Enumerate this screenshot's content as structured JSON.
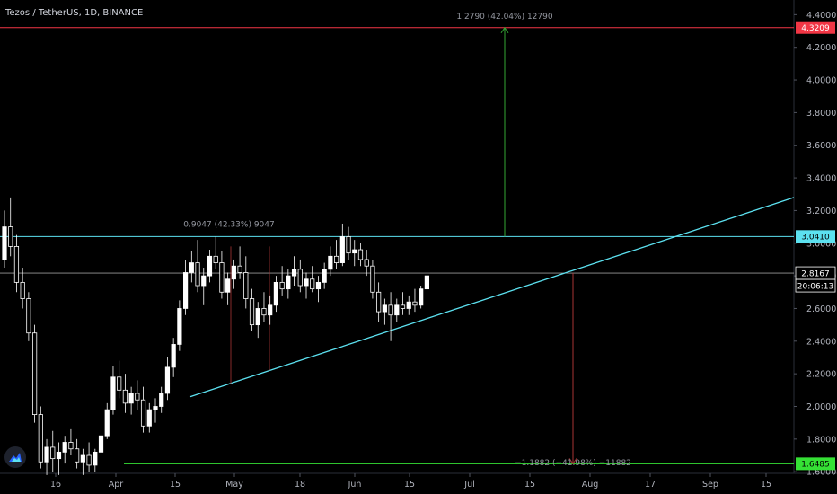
{
  "chart_data": {
    "type": "candlestick",
    "title": "Tezos / TetherUS, 1D, BINANCE",
    "price_axis": {
      "range": [
        1.59,
        4.49
      ],
      "ticks": [
        "4.4000",
        "4.2000",
        "4.0000",
        "3.8000",
        "3.6000",
        "3.4000",
        "3.2000",
        "3.0000",
        "2.8000",
        "2.6000",
        "2.4000",
        "2.2000",
        "2.0000",
        "1.8000",
        "1.6000"
      ]
    },
    "time_axis": {
      "ticks": [
        "16",
        "Apr",
        "15",
        "May",
        "18",
        "Jun",
        "15",
        "Jul",
        "15",
        "Aug",
        "17",
        "Sep",
        "15"
      ]
    },
    "horizontal_levels": [
      {
        "price": 4.3209,
        "label": "4.3209",
        "color": "#f23645"
      },
      {
        "price": 3.041,
        "label": "3.0410",
        "color": "#5ce1f0"
      },
      {
        "price": 2.8167,
        "label": "2.8167",
        "color": "#ffffff"
      },
      {
        "price": 1.6485,
        "label": "1.6485",
        "color": "#35e035"
      }
    ],
    "countdown": "20:06:13",
    "measurements": [
      {
        "text": "0.9047 (42.33%) 9047"
      },
      {
        "text": "1.2790 (42.04%) 12790"
      },
      {
        "text": "−1.1882 (−41.98%) −11882"
      }
    ],
    "trendlines": [
      {
        "name": "ascending-support",
        "color": "#5ce1f0",
        "from": [
          20,
          2.06
        ],
        "to": [
          125,
          3.28
        ]
      }
    ],
    "candles_ohlc": [
      [
        0,
        2.9,
        3.2,
        2.85,
        3.1
      ],
      [
        1,
        3.1,
        3.28,
        2.92,
        2.98
      ],
      [
        2,
        2.98,
        3.05,
        2.7,
        2.76
      ],
      [
        3,
        2.76,
        2.85,
        2.6,
        2.66
      ],
      [
        4,
        2.66,
        2.7,
        2.4,
        2.45
      ],
      [
        5,
        2.45,
        2.5,
        1.9,
        1.95
      ],
      [
        6,
        1.95,
        2.0,
        1.62,
        1.66
      ],
      [
        7,
        1.66,
        1.8,
        1.58,
        1.75
      ],
      [
        8,
        1.75,
        1.85,
        1.6,
        1.68
      ],
      [
        9,
        1.68,
        1.78,
        1.58,
        1.72
      ],
      [
        10,
        1.72,
        1.82,
        1.65,
        1.78
      ],
      [
        11,
        1.78,
        1.86,
        1.7,
        1.74
      ],
      [
        12,
        1.74,
        1.8,
        1.62,
        1.66
      ],
      [
        13,
        1.66,
        1.74,
        1.58,
        1.7
      ],
      [
        14,
        1.7,
        1.78,
        1.6,
        1.64
      ],
      [
        15,
        1.64,
        1.74,
        1.6,
        1.72
      ],
      [
        16,
        1.72,
        1.86,
        1.68,
        1.82
      ],
      [
        17,
        1.82,
        2.02,
        1.8,
        1.98
      ],
      [
        18,
        1.98,
        2.25,
        1.95,
        2.18
      ],
      [
        19,
        2.18,
        2.28,
        2.05,
        2.1
      ],
      [
        20,
        2.1,
        2.2,
        1.96,
        2.02
      ],
      [
        21,
        2.02,
        2.12,
        1.95,
        2.08
      ],
      [
        22,
        2.08,
        2.16,
        1.98,
        2.04
      ],
      [
        23,
        2.04,
        2.12,
        1.84,
        1.88
      ],
      [
        24,
        1.88,
        2.02,
        1.84,
        1.98
      ],
      [
        25,
        1.98,
        2.05,
        1.9,
        2.0
      ],
      [
        26,
        2.0,
        2.12,
        1.96,
        2.08
      ],
      [
        27,
        2.08,
        2.3,
        2.04,
        2.24
      ],
      [
        28,
        2.24,
        2.42,
        2.18,
        2.38
      ],
      [
        29,
        2.38,
        2.65,
        2.34,
        2.6
      ],
      [
        30,
        2.6,
        2.9,
        2.56,
        2.82
      ],
      [
        31,
        2.82,
        2.95,
        2.76,
        2.88
      ],
      [
        32,
        2.88,
        3.02,
        2.7,
        2.74
      ],
      [
        33,
        2.74,
        2.85,
        2.62,
        2.8
      ],
      [
        34,
        2.8,
        2.96,
        2.76,
        2.92
      ],
      [
        35,
        2.92,
        3.04,
        2.84,
        2.88
      ],
      [
        36,
        2.88,
        2.95,
        2.66,
        2.7
      ],
      [
        37,
        2.7,
        2.82,
        2.62,
        2.78
      ],
      [
        38,
        2.78,
        2.9,
        2.72,
        2.86
      ],
      [
        39,
        2.86,
        2.98,
        2.78,
        2.82
      ],
      [
        40,
        2.82,
        2.92,
        2.6,
        2.66
      ],
      [
        41,
        2.66,
        2.72,
        2.46,
        2.5
      ],
      [
        42,
        2.5,
        2.64,
        2.42,
        2.6
      ],
      [
        43,
        2.6,
        2.7,
        2.52,
        2.56
      ],
      [
        44,
        2.56,
        2.68,
        2.5,
        2.62
      ],
      [
        45,
        2.62,
        2.8,
        2.58,
        2.76
      ],
      [
        46,
        2.76,
        2.86,
        2.68,
        2.72
      ],
      [
        47,
        2.72,
        2.84,
        2.66,
        2.8
      ],
      [
        48,
        2.8,
        2.92,
        2.74,
        2.84
      ],
      [
        49,
        2.84,
        2.9,
        2.7,
        2.74
      ],
      [
        50,
        2.74,
        2.82,
        2.66,
        2.78
      ],
      [
        51,
        2.78,
        2.86,
        2.7,
        2.72
      ],
      [
        52,
        2.72,
        2.8,
        2.64,
        2.76
      ],
      [
        53,
        2.76,
        2.88,
        2.72,
        2.84
      ],
      [
        54,
        2.84,
        2.98,
        2.8,
        2.92
      ],
      [
        55,
        2.92,
        3.02,
        2.84,
        2.88
      ],
      [
        56,
        2.88,
        3.12,
        2.86,
        3.04
      ],
      [
        57,
        3.04,
        3.1,
        2.9,
        2.94
      ],
      [
        58,
        2.94,
        3.02,
        2.86,
        2.96
      ],
      [
        59,
        2.96,
        3.0,
        2.86,
        2.9
      ],
      [
        60,
        2.9,
        2.96,
        2.8,
        2.86
      ],
      [
        61,
        2.86,
        2.9,
        2.66,
        2.7
      ],
      [
        62,
        2.7,
        2.76,
        2.52,
        2.58
      ],
      [
        63,
        2.58,
        2.66,
        2.5,
        2.62
      ],
      [
        64,
        2.62,
        2.7,
        2.4,
        2.56
      ],
      [
        65,
        2.56,
        2.66,
        2.52,
        2.62
      ],
      [
        66,
        2.62,
        2.7,
        2.56,
        2.6
      ],
      [
        67,
        2.6,
        2.68,
        2.56,
        2.64
      ],
      [
        68,
        2.64,
        2.72,
        2.58,
        2.62
      ],
      [
        69,
        2.62,
        2.74,
        2.6,
        2.72
      ],
      [
        70,
        2.72,
        2.82,
        2.7,
        2.8
      ]
    ]
  }
}
